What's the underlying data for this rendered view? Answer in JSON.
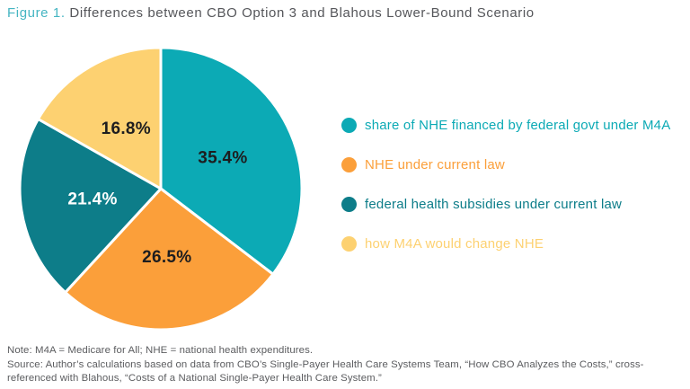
{
  "header": {
    "figure_label": "Figure 1.",
    "title": "Differences between CBO Option 3 and Blahous Lower-Bound Scenario"
  },
  "chart_data": {
    "type": "pie",
    "title": "Figure 1. Differences between CBO Option 3 and Blahous Lower-Bound Scenario",
    "unit": "percent",
    "direction": "clockwise",
    "start_angle_deg": 0,
    "legend_position": "right",
    "slices": [
      {
        "label": "share of NHE financed by federal govt under M4A",
        "value": 35.4,
        "color": "#0caab5",
        "label_color": "#1d1d1f"
      },
      {
        "label": "NHE under current law",
        "value": 26.5,
        "color": "#fb9f3a",
        "label_color": "#1d1d1f"
      },
      {
        "label": "federal health subsidies under current law",
        "value": 21.4,
        "color": "#0d7d89",
        "label_color": "#ffffff"
      },
      {
        "label": "how M4A would change NHE",
        "value": 16.8,
        "color": "#fdd171",
        "label_color": "#1d1d1f"
      }
    ]
  },
  "footer": {
    "note": "Note: M4A = Medicare for All; NHE = national health expenditures.",
    "source_line1": "Source: Author’s calculations based on data from CBO’s Single-Payer Health Care Systems Team, “How CBO Analyzes the Costs,” cross-",
    "source_line2": "referenced with Blahous, “Costs of a National Single-Payer Health Care System.”"
  },
  "colors": {
    "accent_teal": "#45b5c2",
    "title_gray": "#55565a",
    "footnote_gray": "#5b5c5f",
    "slice_divider": "#ffffff",
    "background": "#ffffff"
  }
}
